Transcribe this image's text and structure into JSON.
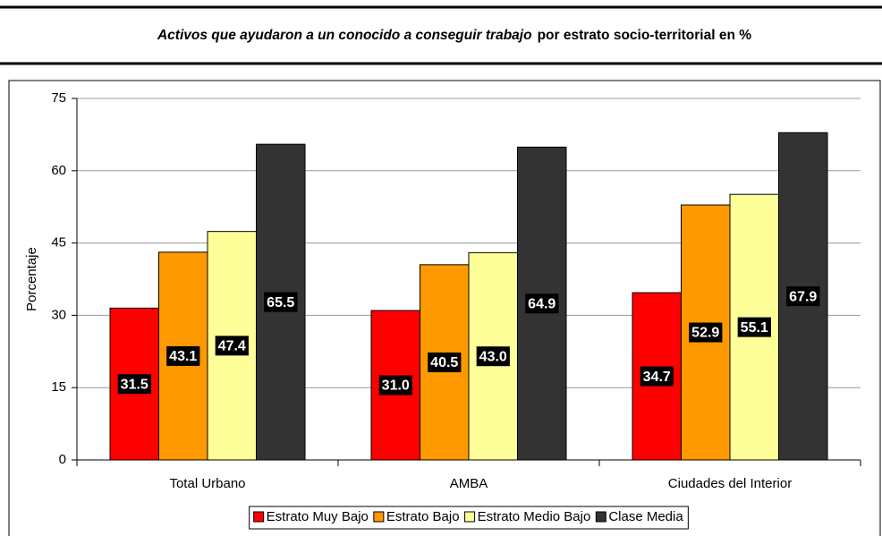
{
  "chart_data": {
    "type": "bar",
    "title": "Activos que ayudaron a un conocido a conseguir trabajo",
    "subtitle": "por estrato socio-territorial en %",
    "y_label": "Porcentaje",
    "categories": [
      "Total Urbano",
      "AMBA",
      "Ciudades del Interior"
    ],
    "series": [
      {
        "name": "Estrato Muy Bajo",
        "color": "#ff0000",
        "values": [
          31.5,
          31,
          34.7
        ],
        "value_labels": [
          "31.5",
          "31.0",
          "34.7"
        ]
      },
      {
        "name": "Estrato Bajo",
        "color": "#ff9900",
        "values": [
          43.1,
          40.5,
          52.9
        ],
        "value_labels": [
          "43.1",
          "40.5",
          "52.9"
        ]
      },
      {
        "name": "Estrato Medio Bajo",
        "color": "#ffff99",
        "values": [
          47.4,
          43,
          55.1
        ],
        "value_labels": [
          "47.4",
          "43.0",
          "55.1"
        ]
      },
      {
        "name": "Clase Media",
        "color": "#333333",
        "values": [
          65.5,
          64.9,
          67.9
        ],
        "value_labels": [
          "65.5",
          "64.9",
          "67.9"
        ]
      }
    ],
    "ylim": [
      0,
      75
    ],
    "yticks": [
      0,
      15,
      30,
      45,
      60,
      75
    ],
    "grid": true,
    "legend": "bottom"
  }
}
